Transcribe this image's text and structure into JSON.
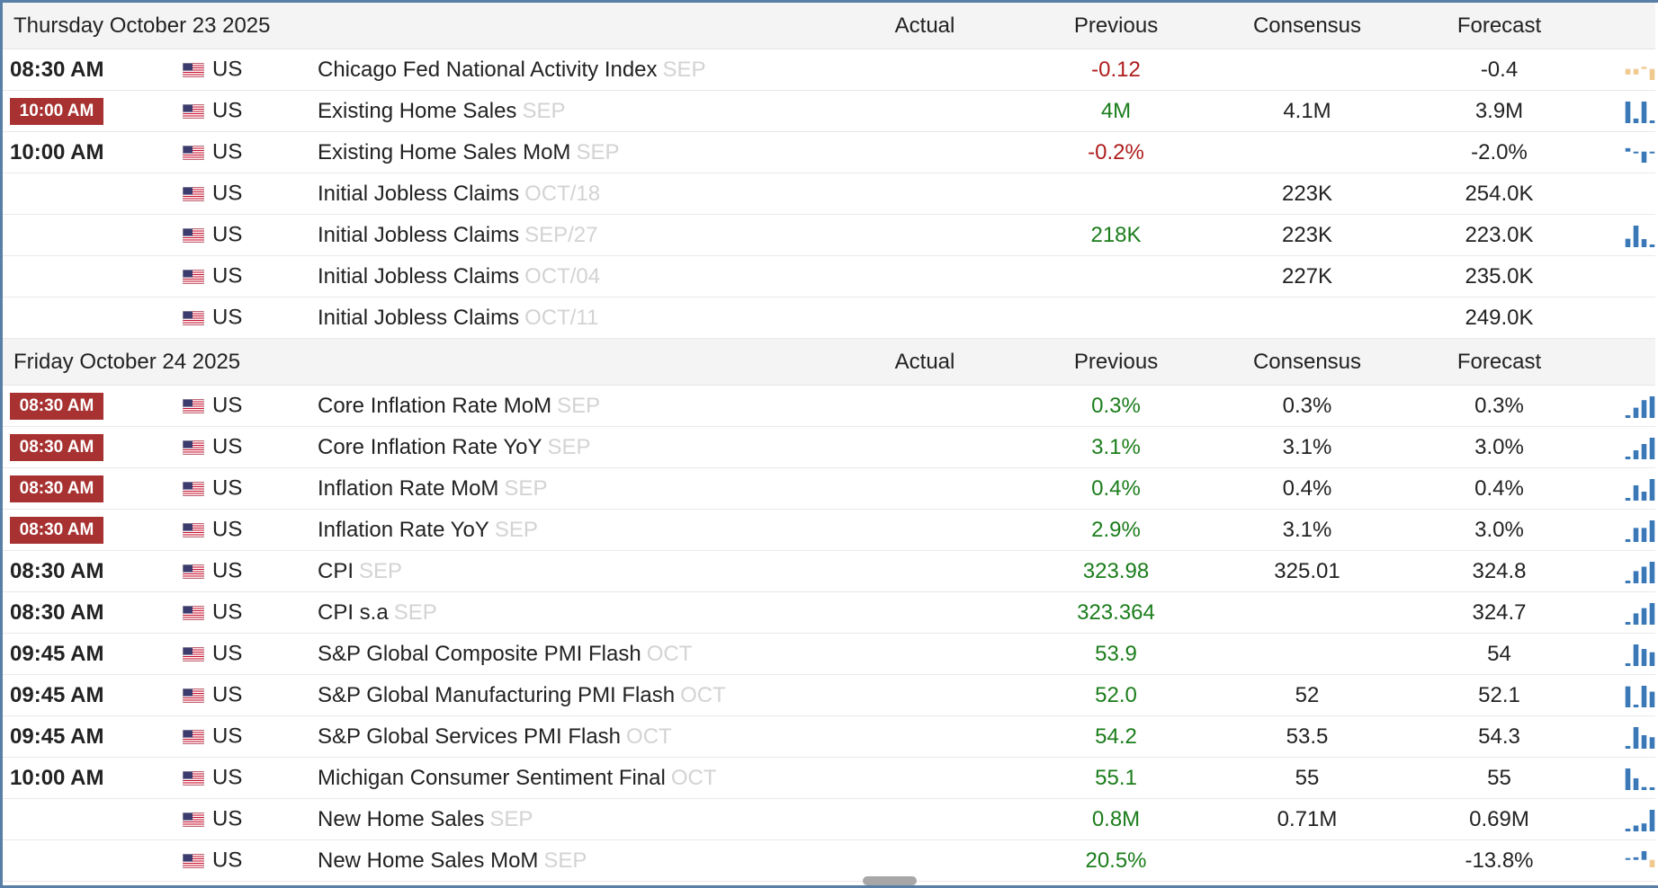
{
  "sections": [
    {
      "date": "Thursday October 23 2025",
      "headers": {
        "actual": "Actual",
        "previous": "Previous",
        "consensus": "Consensus",
        "forecast": "Forecast"
      },
      "events": [
        {
          "time": "08:30 AM",
          "badge": false,
          "country": "US",
          "event": "Chicago Fed National Activity Index",
          "ref": "SEP",
          "actual": "",
          "previous": "-0.12",
          "previous_trend": "neg",
          "consensus": "",
          "forecast": "-0.4",
          "spark": {
            "values": [
              -0.2,
              -0.2,
              0.1,
              -0.4
            ],
            "color": "#f0c98f"
          }
        },
        {
          "time": "10:00 AM",
          "badge": true,
          "country": "US",
          "event": "Existing Home Sales",
          "ref": "SEP",
          "actual": "",
          "previous": "4M",
          "previous_trend": "pos",
          "consensus": "4.1M",
          "forecast": "3.9M",
          "spark": {
            "values": [
              4.0,
              3.91,
              4.0,
              3.9
            ],
            "color": "#3a78b8"
          }
        },
        {
          "time": "10:00 AM",
          "badge": false,
          "country": "US",
          "event": "Existing Home Sales MoM",
          "ref": "SEP",
          "actual": "",
          "previous": "-0.2%",
          "previous_trend": "neg",
          "consensus": "",
          "forecast": "-2.0%",
          "spark": {
            "values": [
              0.8,
              -0.2,
              -2.0,
              -0.2
            ],
            "color": "#3a78b8"
          }
        },
        {
          "time": "",
          "badge": false,
          "country": "US",
          "event": "Initial Jobless Claims",
          "ref": "OCT/18",
          "actual": "",
          "previous": "",
          "previous_trend": "",
          "consensus": "223K",
          "forecast": "254.0K",
          "spark": null
        },
        {
          "time": "",
          "badge": false,
          "country": "US",
          "event": "Initial Jobless Claims",
          "ref": "SEP/27",
          "actual": "",
          "previous": "218K",
          "previous_trend": "pos",
          "consensus": "223K",
          "forecast": "223.0K",
          "spark": {
            "values": [
              232,
              264,
              231,
              218
            ],
            "color": "#3a78b8"
          }
        },
        {
          "time": "",
          "badge": false,
          "country": "US",
          "event": "Initial Jobless Claims",
          "ref": "OCT/04",
          "actual": "",
          "previous": "",
          "previous_trend": "",
          "consensus": "227K",
          "forecast": "235.0K",
          "spark": null
        },
        {
          "time": "",
          "badge": false,
          "country": "US",
          "event": "Initial Jobless Claims",
          "ref": "OCT/11",
          "actual": "",
          "previous": "",
          "previous_trend": "",
          "consensus": "",
          "forecast": "249.0K",
          "spark": null
        }
      ]
    },
    {
      "date": "Friday October 24 2025",
      "headers": {
        "actual": "Actual",
        "previous": "Previous",
        "consensus": "Consensus",
        "forecast": "Forecast"
      },
      "events": [
        {
          "time": "08:30 AM",
          "badge": true,
          "country": "US",
          "event": "Core Inflation Rate MoM",
          "ref": "SEP",
          "actual": "",
          "previous": "0.3%",
          "previous_trend": "pos",
          "consensus": "0.3%",
          "forecast": "0.3%",
          "spark": {
            "values": [
              0.1,
              0.2,
              0.3,
              0.35
            ],
            "color": "#3a78b8"
          }
        },
        {
          "time": "08:30 AM",
          "badge": true,
          "country": "US",
          "event": "Core Inflation Rate YoY",
          "ref": "SEP",
          "actual": "",
          "previous": "3.1%",
          "previous_trend": "pos",
          "consensus": "3.1%",
          "forecast": "3.0%",
          "spark": {
            "values": [
              2.8,
              2.9,
              3.0,
              3.1
            ],
            "color": "#3a78b8"
          }
        },
        {
          "time": "08:30 AM",
          "badge": true,
          "country": "US",
          "event": "Inflation Rate MoM",
          "ref": "SEP",
          "actual": "",
          "previous": "0.4%",
          "previous_trend": "pos",
          "consensus": "0.4%",
          "forecast": "0.4%",
          "spark": {
            "values": [
              0.1,
              0.3,
              0.2,
              0.4
            ],
            "color": "#3a78b8"
          }
        },
        {
          "time": "08:30 AM",
          "badge": true,
          "country": "US",
          "event": "Inflation Rate YoY",
          "ref": "SEP",
          "actual": "",
          "previous": "2.9%",
          "previous_trend": "pos",
          "consensus": "3.1%",
          "forecast": "3.0%",
          "spark": {
            "values": [
              2.4,
              2.7,
              2.7,
              2.9
            ],
            "color": "#3a78b8"
          }
        },
        {
          "time": "08:30 AM",
          "badge": false,
          "country": "US",
          "event": "CPI",
          "ref": "SEP",
          "actual": "",
          "previous": "323.98",
          "previous_trend": "pos",
          "consensus": "325.01",
          "forecast": "324.8",
          "spark": {
            "values": [
              321,
              322.5,
              323.2,
              323.98
            ],
            "color": "#3a78b8"
          }
        },
        {
          "time": "08:30 AM",
          "badge": false,
          "country": "US",
          "event": "CPI s.a",
          "ref": "SEP",
          "actual": "",
          "previous": "323.364",
          "previous_trend": "pos",
          "consensus": "",
          "forecast": "324.7",
          "spark": {
            "values": [
              320.5,
              321.8,
              322.6,
              323.364
            ],
            "color": "#3a78b8"
          }
        },
        {
          "time": "09:45 AM",
          "badge": false,
          "country": "US",
          "event": "S&P Global Composite PMI Flash",
          "ref": "OCT",
          "actual": "",
          "previous": "53.9",
          "previous_trend": "pos",
          "consensus": "",
          "forecast": "54",
          "spark": {
            "values": [
              52.2,
              55.1,
              54.4,
              53.9
            ],
            "color": "#3a78b8"
          }
        },
        {
          "time": "09:45 AM",
          "badge": false,
          "country": "US",
          "event": "S&P Global Manufacturing PMI Flash",
          "ref": "OCT",
          "actual": "",
          "previous": "52.0",
          "previous_trend": "pos",
          "consensus": "52",
          "forecast": "52.1",
          "spark": {
            "values": [
              52.9,
              49.8,
              53.0,
              52.0
            ],
            "color": "#3a78b8"
          }
        },
        {
          "time": "09:45 AM",
          "badge": false,
          "country": "US",
          "event": "S&P Global Services PMI Flash",
          "ref": "OCT",
          "actual": "",
          "previous": "54.2",
          "previous_trend": "pos",
          "consensus": "53.5",
          "forecast": "54.3",
          "spark": {
            "values": [
              52.9,
              55.7,
              54.5,
              54.2
            ],
            "color": "#3a78b8"
          }
        },
        {
          "time": "10:00 AM",
          "badge": false,
          "country": "US",
          "event": "Michigan Consumer Sentiment Final",
          "ref": "OCT",
          "actual": "",
          "previous": "55.1",
          "previous_trend": "pos",
          "consensus": "55",
          "forecast": "55",
          "spark": {
            "values": [
              61.7,
              58.2,
              55.1,
              55.0
            ],
            "color": "#3a78b8"
          }
        },
        {
          "time": "",
          "badge": false,
          "country": "US",
          "event": "New Home Sales",
          "ref": "SEP",
          "actual": "",
          "previous": "0.8M",
          "previous_trend": "pos",
          "consensus": "0.71M",
          "forecast": "0.69M",
          "spark": {
            "values": [
              0.62,
              0.65,
              0.67,
              0.8
            ],
            "color": "#3a78b8"
          }
        },
        {
          "time": "",
          "badge": false,
          "country": "US",
          "event": "New Home Sales MoM",
          "ref": "SEP",
          "actual": "",
          "previous": "20.5%",
          "previous_trend": "pos",
          "consensus": "",
          "forecast": "-13.8%",
          "spark": {
            "values": [
              0.6,
              6.0,
              20.5,
              -13.8
            ],
            "color": "#3a78b8",
            "last_color": "#f0c98f"
          }
        }
      ]
    }
  ],
  "icons": {
    "flag": "us-flag-icon",
    "scroll": "scroll-handle-icon"
  }
}
